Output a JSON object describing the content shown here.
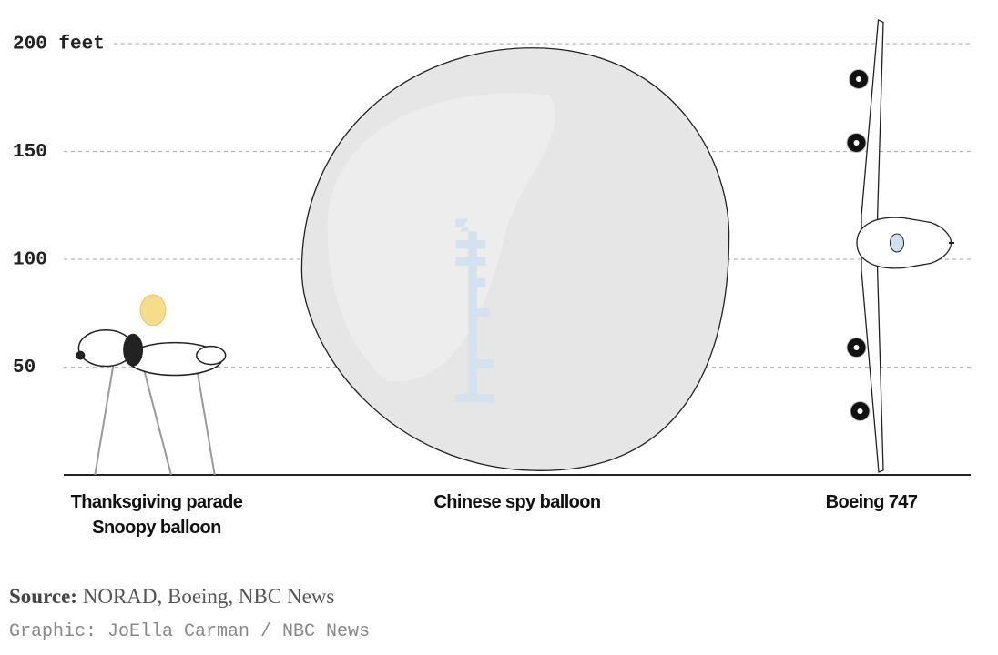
{
  "chart_data": {
    "type": "pictogram",
    "categories": [
      "Thanksgiving parade Snoopy balloon",
      "Chinese spy balloon",
      "Boeing 747"
    ],
    "values": [
      84,
      198,
      211
    ],
    "ylim": [
      0,
      212
    ],
    "yticks": [
      50,
      100,
      150,
      {
        "value": 200,
        "label": "200 feet"
      }
    ],
    "grid": true,
    "source": {
      "label": "Source:",
      "text": "NORAD, Boeing, NBC News"
    },
    "credit": "Graphic: JoElla Carman / NBC News"
  }
}
